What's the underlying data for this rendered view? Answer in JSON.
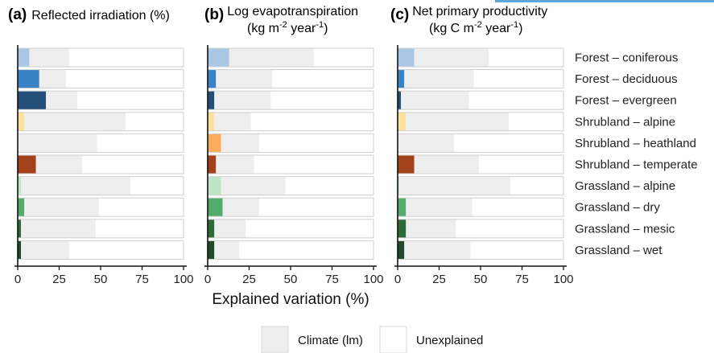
{
  "chart_data": [
    {
      "type": "bar",
      "stacked": true,
      "orientation": "horizontal",
      "panel": "(a)",
      "title": "Reflected irradiation (%)",
      "categories": [
        "Forest – coniferous",
        "Forest – deciduous",
        "Forest – evergreen",
        "Shrubland – alpine",
        "Shrubland – heathland",
        "Shrubland – temperate",
        "Grassland – alpine",
        "Grassland – dry",
        "Grassland – mesic",
        "Grassland – wet"
      ],
      "series": [
        {
          "values": [
            7,
            13,
            17,
            4,
            0,
            11,
            2,
            4,
            2,
            2
          ]
        },
        {
          "name": "Climate (lm)",
          "values": [
            24,
            16,
            19,
            61,
            48,
            28,
            66,
            45,
            45,
            29
          ]
        },
        {
          "name": "Unexplained",
          "values": [
            69,
            71,
            64,
            35,
            52,
            61,
            32,
            51,
            53,
            69
          ]
        }
      ],
      "xlim": [
        0,
        100
      ],
      "xticks": [
        "0",
        "25",
        "50",
        "75",
        "100"
      ]
    },
    {
      "type": "bar",
      "stacked": true,
      "orientation": "horizontal",
      "panel": "(b)",
      "title": "Log evapotranspiration",
      "title_line2": "(kg m-2 year-1)",
      "categories": [
        "Forest – coniferous",
        "Forest – deciduous",
        "Forest – evergreen",
        "Shrubland – alpine",
        "Shrubland – heathland",
        "Shrubland – temperate",
        "Grassland – alpine",
        "Grassland – dry",
        "Grassland – mesic",
        "Grassland – wet"
      ],
      "series": [
        {
          "values": [
            13,
            5,
            4,
            4,
            8,
            5,
            8,
            9,
            4,
            4
          ]
        },
        {
          "name": "Climate (lm)",
          "values": [
            51,
            34,
            34,
            22,
            23,
            23,
            39,
            22,
            19,
            15
          ]
        },
        {
          "name": "Unexplained",
          "values": [
            36,
            61,
            62,
            74,
            69,
            72,
            53,
            69,
            77,
            81
          ]
        }
      ],
      "xlim": [
        0,
        100
      ],
      "xticks": [
        "0",
        "25",
        "50",
        "75",
        "100"
      ]
    },
    {
      "type": "bar",
      "stacked": true,
      "orientation": "horizontal",
      "panel": "(c)",
      "title": "Net primary productivity",
      "title_line2": "(kg C m-2 year-1)",
      "categories": [
        "Forest – coniferous",
        "Forest – deciduous",
        "Forest – evergreen",
        "Shrubland – alpine",
        "Shrubland – heathland",
        "Shrubland – temperate",
        "Grassland – alpine",
        "Grassland – dry",
        "Grassland – mesic",
        "Grassland – wet"
      ],
      "series": [
        {
          "values": [
            10,
            4,
            2,
            5,
            0,
            10,
            1,
            5,
            5,
            4
          ]
        },
        {
          "name": "Climate (lm)",
          "values": [
            45,
            42,
            41,
            62,
            34,
            39,
            67,
            40,
            30,
            40
          ]
        },
        {
          "name": "Unexplained",
          "values": [
            45,
            54,
            57,
            33,
            66,
            51,
            32,
            55,
            65,
            56
          ]
        }
      ],
      "xlim": [
        0,
        100
      ],
      "xticks": [
        "0",
        "25",
        "50",
        "75",
        "100"
      ]
    }
  ],
  "row_labels": [
    "Forest – coniferous",
    "Forest – deciduous",
    "Forest – evergreen",
    "Shrubland – alpine",
    "Shrubland – heathland",
    "Shrubland – temperate",
    "Grassland – alpine",
    "Grassland – dry",
    "Grassland – mesic",
    "Grassland – wet"
  ],
  "row_colors": [
    "#aac8e4",
    "#3a82c6",
    "#234e77",
    "#fddf9e",
    "#faac5c",
    "#a3421a",
    "#c1e4c5",
    "#53ac6b",
    "#2d6a3a",
    "#1f4a2c"
  ],
  "xlabel": "Explained variation (%)",
  "legend": [
    {
      "label": "Climate (lm)",
      "color": "#eeeeee"
    },
    {
      "label": "Unexplained",
      "color": "#ffffff"
    }
  ],
  "titles": {
    "a": {
      "tag": "(a)",
      "text": "Reflected irradiation (%)"
    },
    "b": {
      "tag": "(b)",
      "line1": "Log evapotranspiration",
      "line2_pre": "(kg m",
      "line2_sup1": "-2",
      "line2_mid": " year",
      "line2_sup2": "-1",
      "line2_post": ")"
    },
    "c": {
      "tag": "(c)",
      "line1": "Net primary productivity",
      "line2_pre": "(kg C m",
      "line2_sup1": "-2",
      "line2_mid": " year",
      "line2_sup2": "-1",
      "line2_post": ")"
    }
  },
  "colors": {
    "climate": "#eeeeee",
    "unexplained": "#ffffff",
    "bar_stroke": "#cfcfcf",
    "axis": "#111111",
    "accent_strip": "#5ea8d9"
  }
}
